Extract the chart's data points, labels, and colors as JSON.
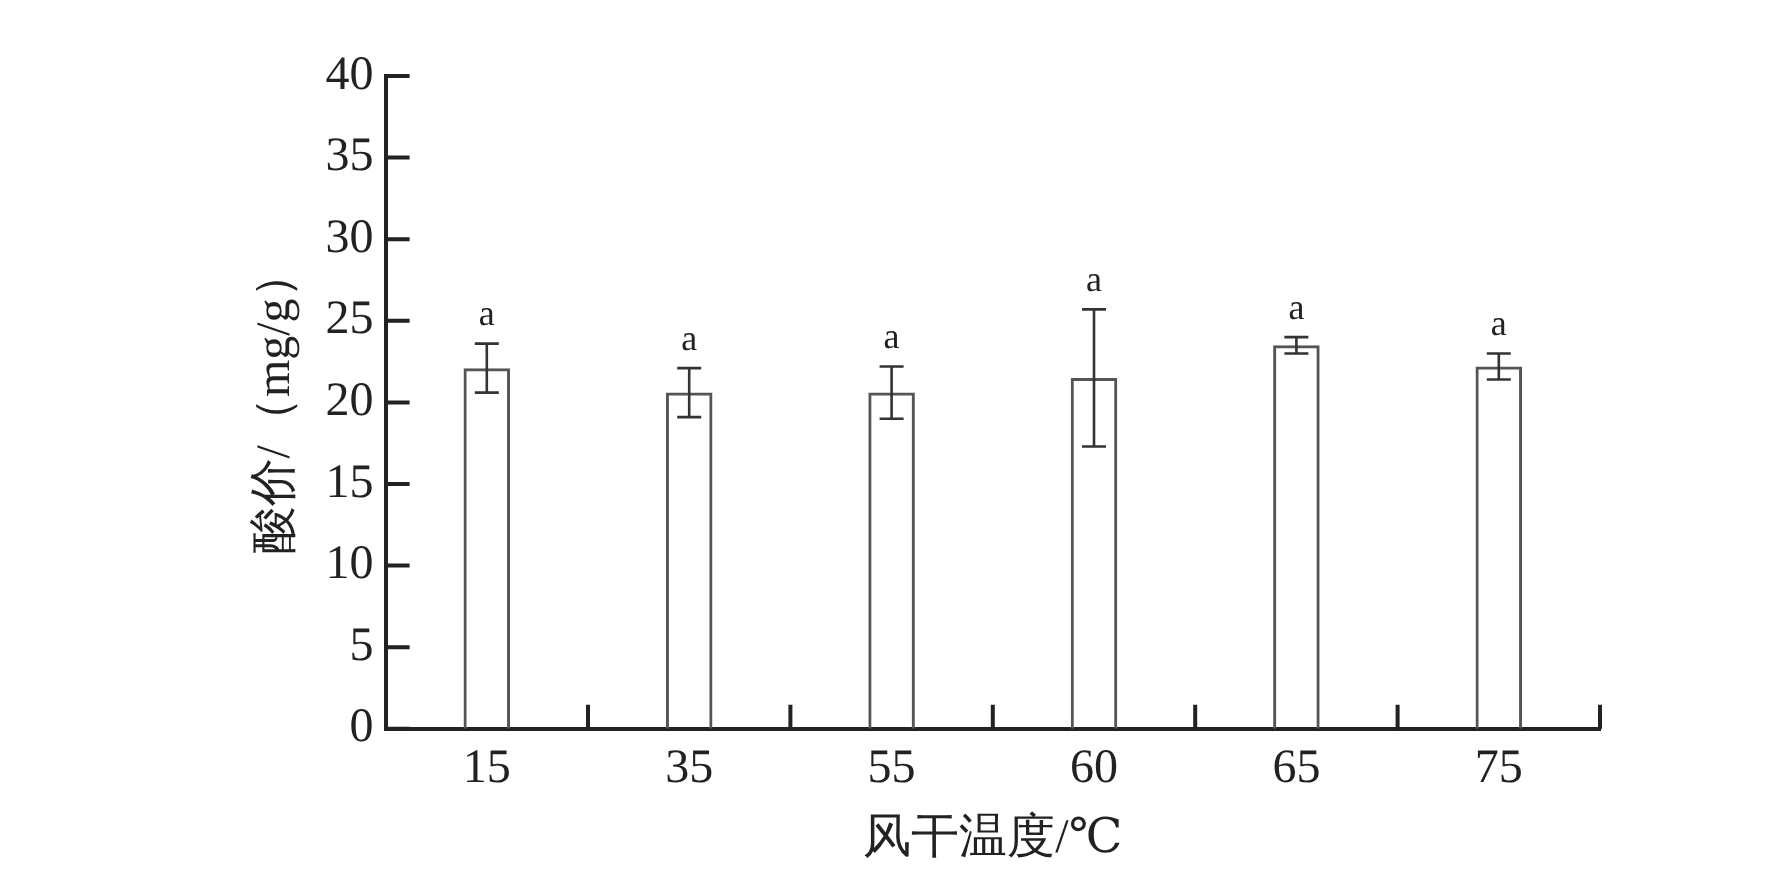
{
  "chart_data": {
    "type": "bar",
    "xlabel": "风干温度/℃",
    "ylabel": "酸价/（mg/g）",
    "categories": [
      "15",
      "35",
      "55",
      "60",
      "65",
      "75"
    ],
    "series": [
      {
        "color": "#555555",
        "values": [
          22.1,
          20.6,
          20.6,
          21.5,
          23.5,
          22.2
        ],
        "errors": [
          1.5,
          1.5,
          1.6,
          4.2,
          0.5,
          0.8
        ],
        "value_labels": [
          "a",
          "a",
          "a",
          "a",
          "a",
          "a"
        ]
      }
    ],
    "ylim": [
      0,
      40
    ],
    "yticks": [
      0,
      5,
      10,
      15,
      20,
      25,
      30,
      35,
      40
    ],
    "grid": false,
    "legend": false
  }
}
